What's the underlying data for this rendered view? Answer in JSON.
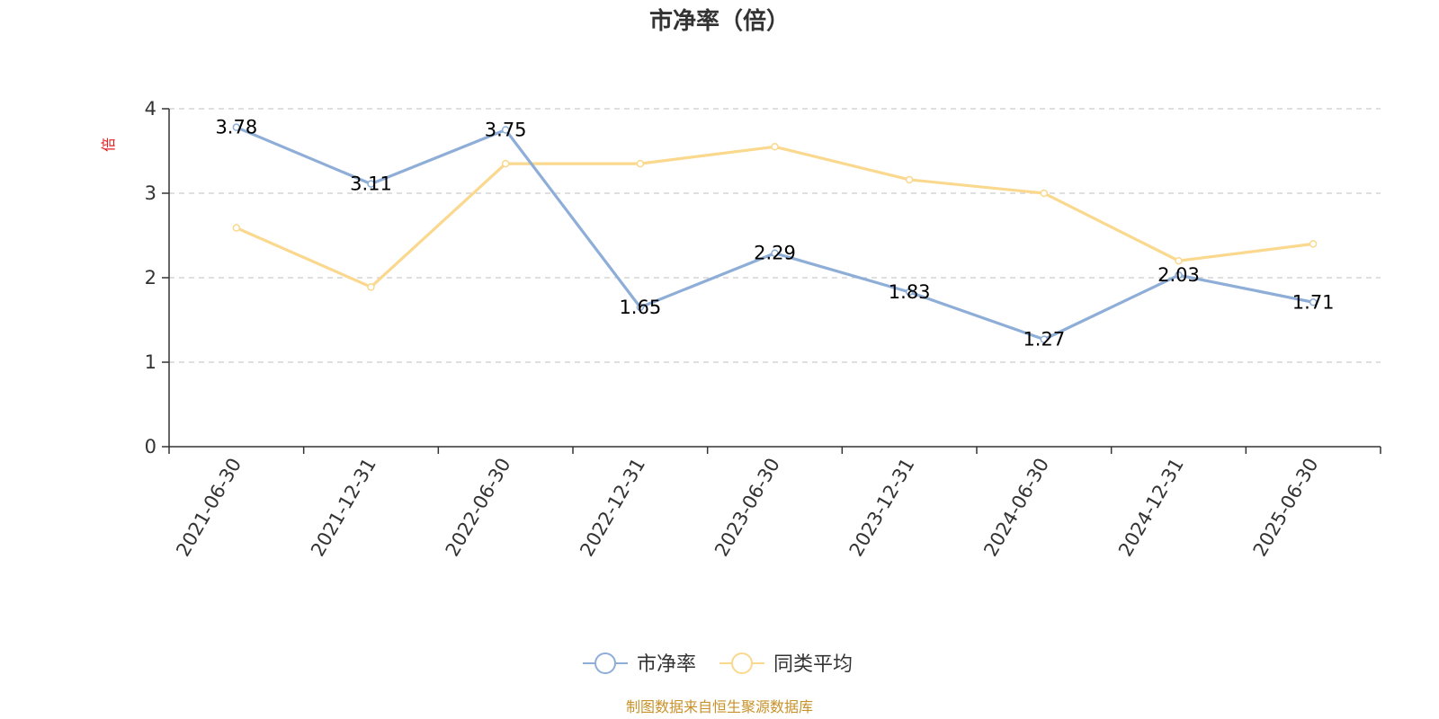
{
  "chart_data": {
    "type": "line",
    "title": "市净率（倍）",
    "ylabel": "倍",
    "ylim": [
      0,
      4
    ],
    "y_ticks": [
      "0",
      "1",
      "2",
      "3",
      "4"
    ],
    "grid": true,
    "legend_position": "bottom-center",
    "categories": [
      "2021-06-30",
      "2021-12-31",
      "2022-06-30",
      "2022-12-31",
      "2023-06-30",
      "2023-12-31",
      "2024-06-30",
      "2024-12-31",
      "2025-06-30"
    ],
    "series": [
      {
        "name": "市净率",
        "color": "#8eaed8",
        "values": [
          3.78,
          3.11,
          3.75,
          1.65,
          2.29,
          1.83,
          1.27,
          2.03,
          1.71
        ],
        "labels": [
          "3.78",
          "3.11",
          "3.75",
          "1.65",
          "2.29",
          "1.83",
          "1.27",
          "2.03",
          "1.71"
        ]
      },
      {
        "name": "同类平均",
        "color": "#fad88e",
        "values": [
          2.59,
          1.89,
          3.35,
          3.35,
          3.55,
          3.16,
          3.0,
          2.2,
          2.4
        ]
      }
    ],
    "source": "制图数据来自恒生聚源数据库"
  }
}
